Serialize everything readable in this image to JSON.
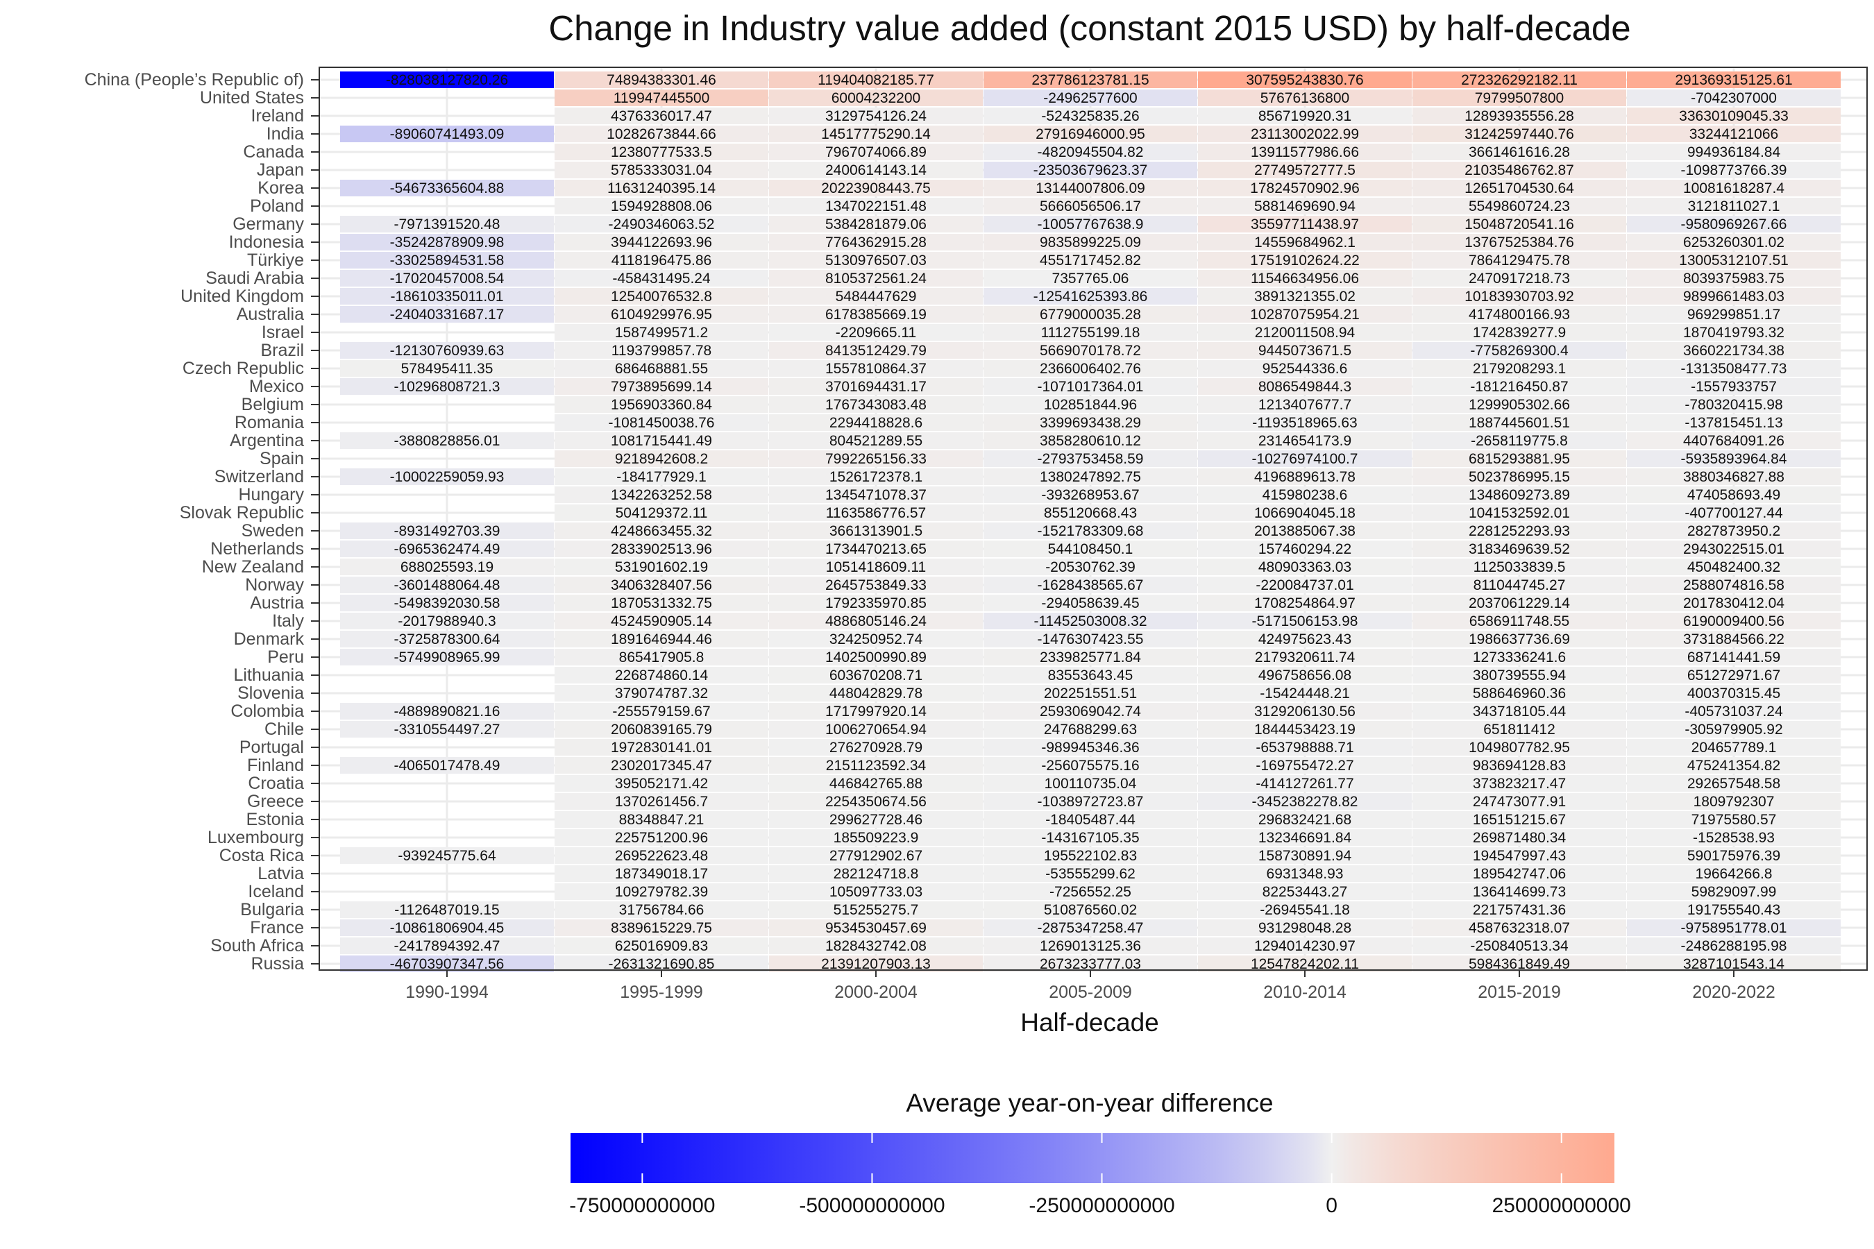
{
  "chart_data": {
    "type": "heatmap",
    "title": "Change in Industry value added (constant 2015 USD) by half-decade",
    "xlabel": "Half-decade",
    "ylabel": "",
    "legend_title": "Average year-on-year difference",
    "legend_position": "bottom",
    "grid": true,
    "color_scale": {
      "low": "#0000FF",
      "mid": "#F0F0F0",
      "high": "#FFA98F",
      "domain": [
        -828038127820.26,
        307595243830.76
      ],
      "ticks": [
        -750000000000,
        -500000000000,
        -250000000000,
        0,
        250000000000
      ],
      "tick_labels": [
        "-750000000000",
        "-500000000000",
        "-250000000000",
        "0",
        "250000000000"
      ]
    },
    "columns": [
      "1990-1994",
      "1995-1999",
      "2000-2004",
      "2005-2009",
      "2010-2014",
      "2015-2019",
      "2020-2022"
    ],
    "rows": [
      {
        "name": "China (People’s Republic of)",
        "values": [
          "-828038127820.26",
          "74894383301.46",
          "119404082185.77",
          "237786123781.15",
          "307595243830.76",
          "272326292182.11",
          "291369315125.61"
        ]
      },
      {
        "name": "United States",
        "values": [
          null,
          "119947445500",
          "60004232200",
          "-24962577600",
          "57676136800",
          "79799507800",
          "-7042307000"
        ]
      },
      {
        "name": "Ireland",
        "values": [
          null,
          "4376336017.47",
          "3129754126.24",
          "-524325835.26",
          "856719920.31",
          "12893935556.28",
          "33630109045.33"
        ]
      },
      {
        "name": "India",
        "values": [
          "-89060741493.09",
          "10282673844.66",
          "14517775290.14",
          "27916946000.95",
          "23113002022.99",
          "31242597440.76",
          "33244121066"
        ]
      },
      {
        "name": "Canada",
        "values": [
          null,
          "12380777533.5",
          "7967074066.89",
          "-4820945504.82",
          "13911577986.66",
          "3661461616.28",
          "994936184.84"
        ]
      },
      {
        "name": "Japan",
        "values": [
          null,
          "5785333031.04",
          "2400614143.14",
          "-23503679623.37",
          "27749572777.5",
          "21035486762.87",
          "-1098773766.39"
        ]
      },
      {
        "name": "Korea",
        "values": [
          "-54673365604.88",
          "11631240395.14",
          "20223908443.75",
          "13144007806.09",
          "17824570902.96",
          "12651704530.64",
          "10081618287.4"
        ]
      },
      {
        "name": "Poland",
        "values": [
          null,
          "1594928808.06",
          "1347022151.48",
          "5666056506.17",
          "5881469690.94",
          "5549860724.23",
          "3121811027.1"
        ]
      },
      {
        "name": "Germany",
        "values": [
          "-7971391520.48",
          "-2490346063.52",
          "5384281879.06",
          "-10057767638.9",
          "35597711438.97",
          "15048720541.16",
          "-9580969267.66"
        ]
      },
      {
        "name": "Indonesia",
        "values": [
          "-35242878909.98",
          "3944122693.96",
          "7764362915.28",
          "9835899225.09",
          "14559684962.1",
          "13767525384.76",
          "6253260301.02"
        ]
      },
      {
        "name": "Türkiye",
        "values": [
          "-33025894531.58",
          "4118196475.86",
          "5130976507.03",
          "4551717452.82",
          "17519102624.22",
          "7864129475.78",
          "13005312107.51"
        ]
      },
      {
        "name": "Saudi Arabia",
        "values": [
          "-17020457008.54",
          "-458431495.24",
          "8105372561.24",
          "7357765.06",
          "11546634956.06",
          "2470917218.73",
          "8039375983.75"
        ]
      },
      {
        "name": "United Kingdom",
        "values": [
          "-18610335011.01",
          "12540076532.8",
          "5484447629",
          "-12541625393.86",
          "3891321355.02",
          "10183930703.92",
          "9899661483.03"
        ]
      },
      {
        "name": "Australia",
        "values": [
          "-24040331687.17",
          "6104929976.95",
          "6178385669.19",
          "6779000035.28",
          "10287075954.21",
          "4174800166.93",
          "969299851.17"
        ]
      },
      {
        "name": "Israel",
        "values": [
          null,
          "1587499571.2",
          "-2209665.11",
          "1112755199.18",
          "2120011508.94",
          "1742839277.9",
          "1870419793.32"
        ]
      },
      {
        "name": "Brazil",
        "values": [
          "-12130760939.63",
          "1193799857.78",
          "8413512429.79",
          "5669070178.72",
          "9445073671.5",
          "-7758269300.4",
          "3660221734.38"
        ]
      },
      {
        "name": "Czech Republic",
        "values": [
          "578495411.35",
          "686468881.55",
          "1557810864.37",
          "2366006402.76",
          "952544336.6",
          "2179208293.1",
          "-1313508477.73"
        ]
      },
      {
        "name": "Mexico",
        "values": [
          "-10296808721.3",
          "7973895699.14",
          "3701694431.17",
          "-1071017364.01",
          "8086549844.3",
          "-181216450.87",
          "-1557933757"
        ]
      },
      {
        "name": "Belgium",
        "values": [
          null,
          "1956903360.84",
          "1767343083.48",
          "102851844.96",
          "1213407677.7",
          "1299905302.66",
          "-780320415.98"
        ]
      },
      {
        "name": "Romania",
        "values": [
          null,
          "-1081450038.76",
          "2294418828.6",
          "3399693438.29",
          "-1193518965.63",
          "1887445601.51",
          "-137815451.13"
        ]
      },
      {
        "name": "Argentina",
        "values": [
          "-3880828856.01",
          "1081715441.49",
          "804521289.55",
          "3858280610.12",
          "2314654173.9",
          "-2658119775.8",
          "4407684091.26"
        ]
      },
      {
        "name": "Spain",
        "values": [
          null,
          "9218942608.2",
          "7992265156.33",
          "-2793753458.59",
          "-10276974100.7",
          "6815293881.95",
          "-5935893964.84"
        ]
      },
      {
        "name": "Switzerland",
        "values": [
          "-10002259059.93",
          "-184177929.1",
          "1526172378.1",
          "1380247892.75",
          "4196889613.78",
          "5023786995.15",
          "3880346827.88"
        ]
      },
      {
        "name": "Hungary",
        "values": [
          null,
          "1342263252.58",
          "1345471078.37",
          "-393268953.67",
          "415980238.6",
          "1348609273.89",
          "474058693.49"
        ]
      },
      {
        "name": "Slovak Republic",
        "values": [
          null,
          "504129372.11",
          "1163586776.57",
          "855120668.43",
          "1066904045.18",
          "1041532592.01",
          "-407700127.44"
        ]
      },
      {
        "name": "Sweden",
        "values": [
          "-8931492703.39",
          "4248663455.32",
          "3661313901.5",
          "-1521783309.68",
          "2013885067.38",
          "2281252293.93",
          "2827873950.2"
        ]
      },
      {
        "name": "Netherlands",
        "values": [
          "-6965362474.49",
          "2833902513.96",
          "1734470213.65",
          "544108450.1",
          "157460294.22",
          "3183469639.52",
          "2943022515.01"
        ]
      },
      {
        "name": "New Zealand",
        "values": [
          "688025593.19",
          "531901602.19",
          "1051418609.11",
          "-20530762.39",
          "480903363.03",
          "1125033839.5",
          "450482400.32"
        ]
      },
      {
        "name": "Norway",
        "values": [
          "-3601488064.48",
          "3406328407.56",
          "2645753849.33",
          "-1628438565.67",
          "-220084737.01",
          "811044745.27",
          "2588074816.58"
        ]
      },
      {
        "name": "Austria",
        "values": [
          "-5498392030.58",
          "1870531332.75",
          "1792335970.85",
          "-294058639.45",
          "1708254864.97",
          "2037061229.14",
          "2017830412.04"
        ]
      },
      {
        "name": "Italy",
        "values": [
          "-2017988940.3",
          "4524590905.14",
          "4886805146.24",
          "-11452503008.32",
          "-5171506153.98",
          "6586911748.55",
          "6190009400.56"
        ]
      },
      {
        "name": "Denmark",
        "values": [
          "-3725878300.64",
          "1891646944.46",
          "324250952.74",
          "-1476307423.55",
          "424975623.43",
          "1986637736.69",
          "3731884566.22"
        ]
      },
      {
        "name": "Peru",
        "values": [
          "-5749908965.99",
          "865417905.8",
          "1402500990.89",
          "2339825771.84",
          "2179320611.74",
          "1273336241.6",
          "687141441.59"
        ]
      },
      {
        "name": "Lithuania",
        "values": [
          null,
          "226874860.14",
          "603670208.71",
          "83553643.45",
          "496758656.08",
          "380739555.94",
          "651272971.67"
        ]
      },
      {
        "name": "Slovenia",
        "values": [
          null,
          "379074787.32",
          "448042829.78",
          "202251551.51",
          "-15424448.21",
          "588646960.36",
          "400370315.45"
        ]
      },
      {
        "name": "Colombia",
        "values": [
          "-4889890821.16",
          "-255579159.67",
          "1717997920.14",
          "2593069042.74",
          "3129206130.56",
          "343718105.44",
          "-405731037.24"
        ]
      },
      {
        "name": "Chile",
        "values": [
          "-3310554497.27",
          "2060839165.79",
          "1006270654.94",
          "247688299.63",
          "1844453423.19",
          "651811412",
          "-305979905.92"
        ]
      },
      {
        "name": "Portugal",
        "values": [
          null,
          "1972830141.01",
          "276270928.79",
          "-989945346.36",
          "-653798888.71",
          "1049807782.95",
          "204657789.1"
        ]
      },
      {
        "name": "Finland",
        "values": [
          "-4065017478.49",
          "2302017345.47",
          "2151123592.34",
          "-256075575.16",
          "-169755472.27",
          "983694128.83",
          "475241354.82"
        ]
      },
      {
        "name": "Croatia",
        "values": [
          null,
          "395052171.42",
          "446842765.88",
          "100110735.04",
          "-414127261.77",
          "373823217.47",
          "292657548.58"
        ]
      },
      {
        "name": "Greece",
        "values": [
          null,
          "1370261456.7",
          "2254350674.56",
          "-1038972723.87",
          "-3452382278.82",
          "247473077.91",
          "1809792307"
        ]
      },
      {
        "name": "Estonia",
        "values": [
          null,
          "88348847.21",
          "299627728.46",
          "-18405487.44",
          "296832421.68",
          "165151215.67",
          "71975580.57"
        ]
      },
      {
        "name": "Luxembourg",
        "values": [
          null,
          "225751200.96",
          "185509223.9",
          "-143167105.35",
          "132346691.84",
          "269871480.34",
          "-1528538.93"
        ]
      },
      {
        "name": "Costa Rica",
        "values": [
          "-939245775.64",
          "269522623.48",
          "277912902.67",
          "195522102.83",
          "158730891.94",
          "194547997.43",
          "590175976.39"
        ]
      },
      {
        "name": "Latvia",
        "values": [
          null,
          "187349018.17",
          "282124718.8",
          "-53555299.62",
          "6931348.93",
          "189542747.06",
          "19664266.8"
        ]
      },
      {
        "name": "Iceland",
        "values": [
          null,
          "109279782.39",
          "105097733.03",
          "-7256552.25",
          "82253443.27",
          "136414699.73",
          "59829097.99"
        ]
      },
      {
        "name": "Bulgaria",
        "values": [
          "-1126487019.15",
          "31756784.66",
          "515255275.7",
          "510876560.02",
          "-26945541.18",
          "221757431.36",
          "191755540.43"
        ]
      },
      {
        "name": "France",
        "values": [
          "-10861806904.45",
          "8389615229.75",
          "9534530457.69",
          "-2875347258.47",
          "931298048.28",
          "4587632318.07",
          "-9758951778.01"
        ]
      },
      {
        "name": "South Africa",
        "values": [
          "-2417894392.47",
          "625016909.83",
          "1828432742.08",
          "1269013125.36",
          "1294014230.97",
          "-250840513.34",
          "-2486288195.98"
        ]
      },
      {
        "name": "Russia",
        "values": [
          "-46703907347.56",
          "-2631321690.85",
          "21391207903.13",
          "2673233777.03",
          "12547824202.11",
          "5984361849.49",
          "3287101543.14"
        ]
      }
    ]
  }
}
